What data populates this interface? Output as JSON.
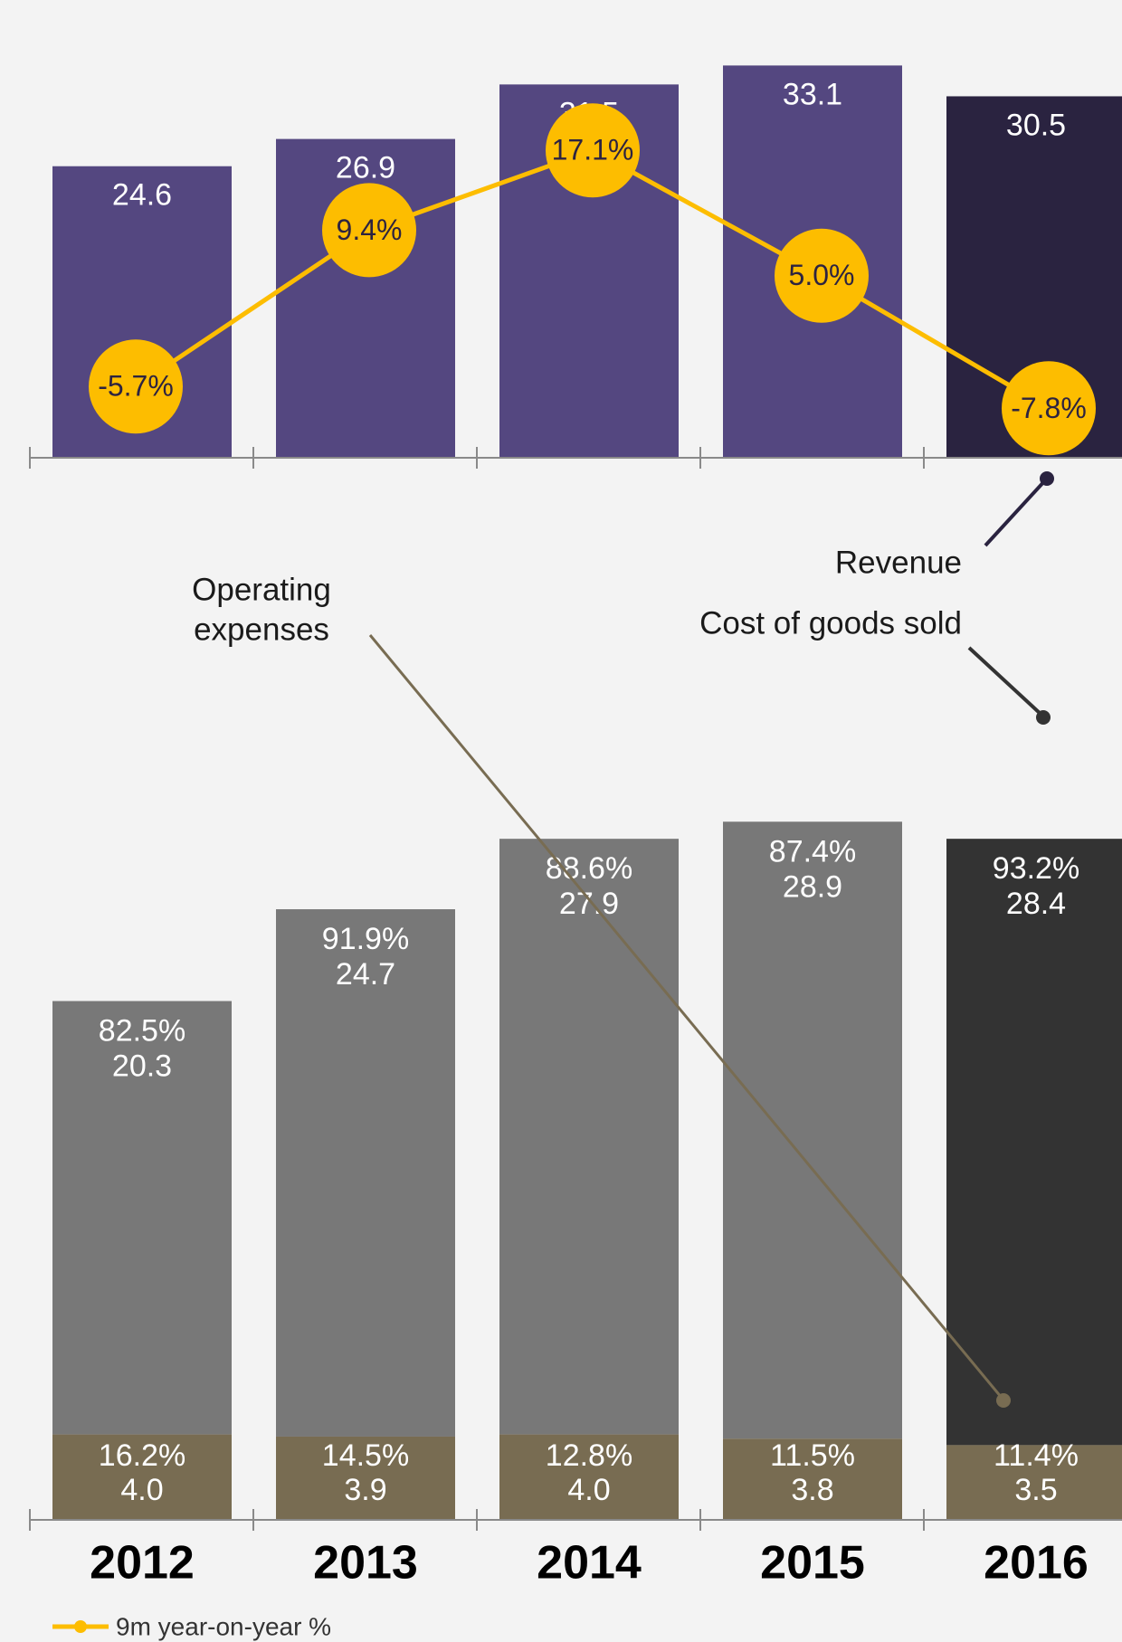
{
  "chart_data": {
    "type": "bar",
    "categories": [
      "2012",
      "2013",
      "2014",
      "2015",
      "2016"
    ],
    "highlight_category": "2016",
    "revenue": {
      "name": "Revenue",
      "values": [
        24.6,
        26.9,
        31.5,
        33.1,
        30.5
      ],
      "labels": [
        "24.6",
        "26.9",
        "31.5",
        "33.1",
        "30.5"
      ]
    },
    "yoy": {
      "name": "9m year-on-year %",
      "values": [
        -5.7,
        9.4,
        17.1,
        5.0,
        -7.8
      ],
      "labels": [
        "-5.7%",
        "9.4%",
        "17.1%",
        "5.0%",
        "-7.8%"
      ]
    },
    "cogs": {
      "name": "Cost of goods sold",
      "values": [
        20.3,
        24.7,
        27.9,
        28.9,
        28.4
      ],
      "labels": [
        "20.3",
        "24.7",
        "27.9",
        "28.9",
        "28.4"
      ],
      "share_labels": [
        "82.5%",
        "91.9%",
        "88.6%",
        "87.4%",
        "93.2%"
      ]
    },
    "opex": {
      "name": "Operating expenses",
      "name_lines": [
        "Operating",
        "expenses"
      ],
      "values": [
        4.0,
        3.9,
        4.0,
        3.8,
        3.5
      ],
      "labels": [
        "4.0",
        "3.9",
        "4.0",
        "3.8",
        "3.5"
      ],
      "share_labels": [
        "16.2%",
        "14.5%",
        "12.8%",
        "11.5%",
        "11.4%"
      ]
    },
    "legend": "9m year-on-year %",
    "colors": {
      "revenue": "#544780",
      "revenue_highlight": "#2a2340",
      "cogs": "#787878",
      "cogs_highlight": "#333333",
      "opex": "#786c52",
      "yoy": "#fdbd00",
      "yoy_text": "#2d2340",
      "axis": "#8a8a8a",
      "background": "#f3f3f3"
    }
  }
}
